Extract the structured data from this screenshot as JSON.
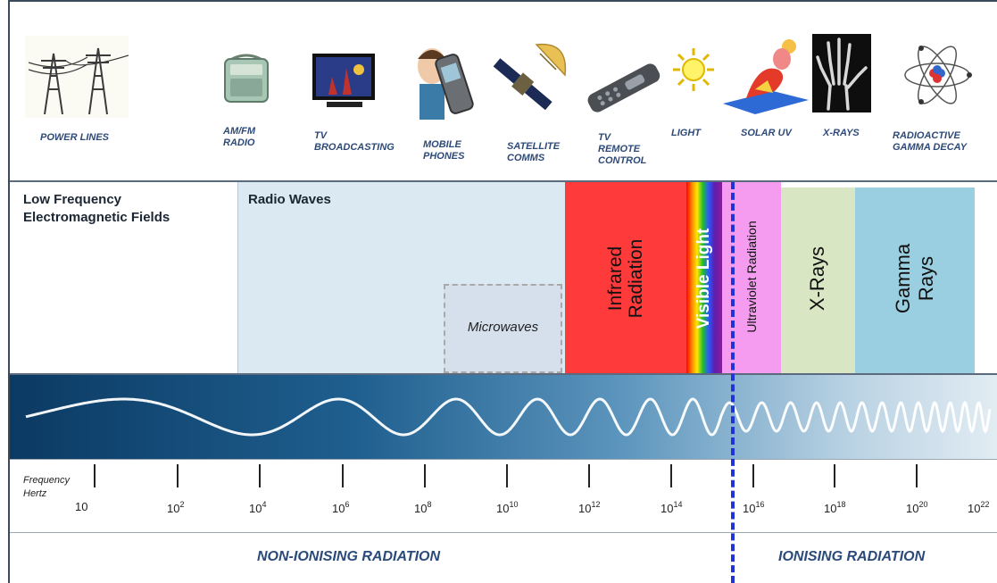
{
  "sources": [
    {
      "id": "power-lines",
      "icon": "power-lines-icon",
      "label": "POWER LINES"
    },
    {
      "id": "am-fm-radio",
      "icon": "radio-icon",
      "label": "AM/FM\nRADIO"
    },
    {
      "id": "tv-broadcasting",
      "icon": "television-icon",
      "label": "TV\nBROADCASTING"
    },
    {
      "id": "mobile-phones",
      "icon": "mobile-phone-icon",
      "label": "MOBILE\nPHONES"
    },
    {
      "id": "satellite-comms",
      "icon": "satellite-icon",
      "label": "SATELLITE\nCOMMS"
    },
    {
      "id": "tv-remote",
      "icon": "remote-control-icon",
      "label": "TV\nREMOTE\nCONTROL"
    },
    {
      "id": "light",
      "icon": "sun-icon",
      "label": "LIGHT"
    },
    {
      "id": "solar-uv",
      "icon": "sunbather-icon",
      "label": "SOLAR UV"
    },
    {
      "id": "x-rays",
      "icon": "xray-hand-icon",
      "label": "X-RAYS"
    },
    {
      "id": "gamma",
      "icon": "atom-icon",
      "label": "RADIOACTIVE\nGAMMA DECAY"
    }
  ],
  "bands": {
    "low_frequency": "Low Frequency\nElectromagnetic Fields",
    "radio_waves": "Radio Waves",
    "microwaves": "Microwaves",
    "infrared": "Infrared\nRadiation",
    "visible": "Visible Light",
    "ultraviolet": "Ultraviolet Radiation",
    "xrays": "X-Rays",
    "gamma": "Gamma\nRays"
  },
  "axis": {
    "title_line1": "Frequency",
    "title_line2": "Hertz",
    "ticks": [
      {
        "base": "10",
        "exp": ""
      },
      {
        "base": "10",
        "exp": "2"
      },
      {
        "base": "10",
        "exp": "4"
      },
      {
        "base": "10",
        "exp": "6"
      },
      {
        "base": "10",
        "exp": "8"
      },
      {
        "base": "10",
        "exp": "10"
      },
      {
        "base": "10",
        "exp": "12"
      },
      {
        "base": "10",
        "exp": "14"
      },
      {
        "base": "10",
        "exp": "16"
      },
      {
        "base": "10",
        "exp": "18"
      },
      {
        "base": "10",
        "exp": "20"
      },
      {
        "base": "10",
        "exp": "22"
      }
    ]
  },
  "regions": {
    "non_ionising": "NON-IONISING RADIATION",
    "ionising": "IONISING RADIATION"
  },
  "colors": {
    "radio_bg": "#dbe9f2",
    "microwave_bg": "#d5e0ec",
    "infrared": "#ff3a3a",
    "ultraviolet": "#f59cf0",
    "xrays": "#d8e6c3",
    "gamma": "#99cfe0",
    "divider": "#1f33d6",
    "label_blue": "#2e4a78"
  }
}
